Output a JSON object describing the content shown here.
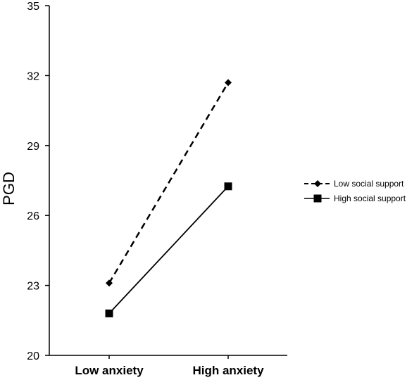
{
  "chart_data": {
    "type": "line",
    "categories": [
      "Low anxiety",
      "High anxiety"
    ],
    "ylabel": "PGD",
    "xlabel": "",
    "ylim": [
      20,
      35
    ],
    "yticks": [
      20,
      23,
      26,
      29,
      32,
      35
    ],
    "grid": false,
    "legend_position": "right",
    "series": [
      {
        "name": "Low social support",
        "values": [
          23.1,
          31.7
        ],
        "line_style": "dashed",
        "marker": "diamond",
        "color": "#000000"
      },
      {
        "name": "High social support",
        "values": [
          21.8,
          27.25
        ],
        "line_style": "solid",
        "marker": "square",
        "color": "#000000"
      }
    ]
  }
}
